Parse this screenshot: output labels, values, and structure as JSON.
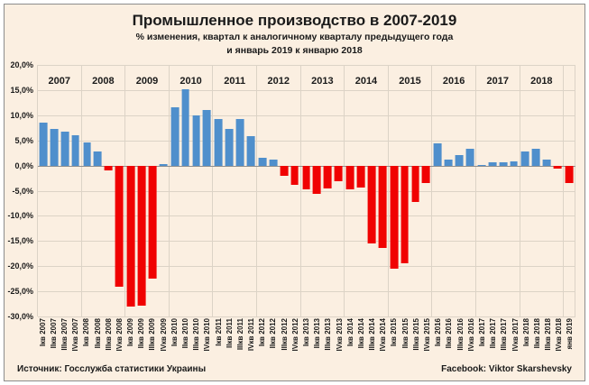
{
  "title": "Промышленное производство в 2007-2019",
  "subtitle_line1": "% изменения, квартал к аналогичному кварталу предыдущего года",
  "subtitle_line2": "и январь 2019 к январю 2018",
  "footer": {
    "source": "Источник: Госслужба статистики Украины",
    "credit": "Facebook: Viktor Skarshevsky"
  },
  "colors": {
    "background": "#fbefe1",
    "positive_bar": "#4f8fcc",
    "negative_bar": "#f00202",
    "gridline": "#dcd3c6",
    "zero_line": "#8f8f8f"
  },
  "chart_data": {
    "type": "bar",
    "title": "Промышленное производство в 2007-2019",
    "subtitle": "% изменения, квартал к аналогичному кварталу предыдущего года и январь 2019 к январю 2018",
    "ylabel": "",
    "xlabel": "",
    "ylim": [
      -30,
      20
    ],
    "ytick_step": 5,
    "ytick_labels": [
      "20,0%",
      "15,0%",
      "10,0%",
      "5,0%",
      "0,0%",
      "-5,0%",
      "-10,0%",
      "-15,0%",
      "-20,0%",
      "-25,0%",
      "-30,0%"
    ],
    "grid": true,
    "legend": false,
    "groups": [
      {
        "year": "2007",
        "labels": [
          "Iкв 2007",
          "IIкв 2007",
          "IIIкв 2007",
          "IVкв 2007"
        ],
        "values": [
          8.5,
          7.2,
          6.7,
          6.0
        ]
      },
      {
        "year": "2008",
        "labels": [
          "Iкв 2008",
          "IIкв 2008",
          "IIIкв 2008",
          "IVкв 2008"
        ],
        "values": [
          4.6,
          2.8,
          -1.0,
          -24.0
        ]
      },
      {
        "year": "2009",
        "labels": [
          "Iкв 2009",
          "IIкв 2009",
          "IIIкв 2009",
          "IVкв 2009"
        ],
        "values": [
          -28.0,
          -27.8,
          -22.5,
          0.3
        ]
      },
      {
        "year": "2010",
        "labels": [
          "Iкв 2010",
          "IIкв 2010",
          "IIIкв 2010",
          "IVкв 2010"
        ],
        "values": [
          11.6,
          15.2,
          10.0,
          11.0
        ]
      },
      {
        "year": "2011",
        "labels": [
          "Iкв 2011",
          "IIкв 2011",
          "IIIкв 2011",
          "IVкв 2011"
        ],
        "values": [
          9.3,
          7.2,
          9.2,
          5.8
        ]
      },
      {
        "year": "2012",
        "labels": [
          "Iкв 2012",
          "IIкв 2012",
          "IIIкв 2012",
          "IVкв 2012"
        ],
        "values": [
          1.6,
          1.2,
          -2.0,
          -3.8
        ]
      },
      {
        "year": "2013",
        "labels": [
          "Iкв 2013",
          "IIкв 2013",
          "IIIкв 2013",
          "IVкв 2013"
        ],
        "values": [
          -4.7,
          -5.6,
          -4.6,
          -3.2
        ]
      },
      {
        "year": "2014",
        "labels": [
          "Iкв 2014",
          "IIкв 2014",
          "IIIкв 2014",
          "IVкв 2014"
        ],
        "values": [
          -4.7,
          -4.3,
          -15.5,
          -16.3
        ]
      },
      {
        "year": "2015",
        "labels": [
          "Iкв 2015",
          "IIкв 2015",
          "IIIкв 2015",
          "IVкв 2015"
        ],
        "values": [
          -20.5,
          -19.4,
          -7.3,
          -3.5
        ]
      },
      {
        "year": "2016",
        "labels": [
          "Iкв 2016",
          "IIкв 2016",
          "IIIкв 2016",
          "IVкв 2016"
        ],
        "values": [
          4.4,
          1.1,
          2.0,
          3.4
        ]
      },
      {
        "year": "2017",
        "labels": [
          "Iкв 2017",
          "IIкв 2017",
          "IIIкв 2017",
          "IVкв 2017"
        ],
        "values": [
          0.1,
          0.6,
          0.6,
          0.9
        ]
      },
      {
        "year": "2018",
        "labels": [
          "Iкв 2018",
          "IIкв 2018",
          "IIIкв 2018",
          "IVкв 2018"
        ],
        "values": [
          2.8,
          3.4,
          1.2,
          -0.7
        ]
      },
      {
        "year": "",
        "labels": [
          "янв 2019"
        ],
        "values": [
          -3.5
        ]
      }
    ]
  }
}
